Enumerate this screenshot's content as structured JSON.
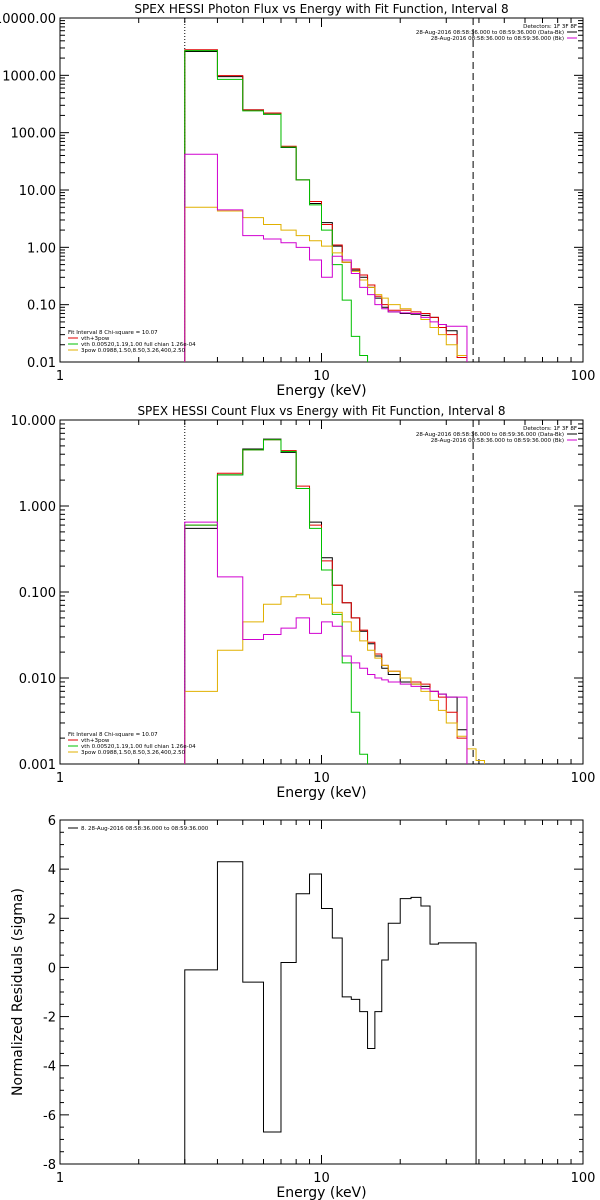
{
  "chart_data": [
    {
      "type": "line",
      "title": "SPEX HESSI Photon Flux vs Energy with Fit Function, Interval 8",
      "xlabel": "Energy (keV)",
      "ylabel": "",
      "xscale": "log",
      "yscale": "log",
      "xlim": [
        1,
        100
      ],
      "ylim": [
        0.01,
        10000
      ],
      "xticks": [
        "1",
        "10",
        "100"
      ],
      "yticks": [
        "0.01",
        "0.10",
        "1.00",
        "10.00",
        "100.00",
        "1000.00",
        "10000.00"
      ],
      "ytick_values": [
        0.01,
        0.1,
        1,
        10,
        100,
        1000,
        10000
      ],
      "fit_range_lines": [
        3,
        38
      ],
      "legend_top": {
        "position": "top-right",
        "header": "Detectors: 1F 3F 8F",
        "entries": [
          {
            "label": "28-Aug-2016 08:58:36.000 to 08:59:36.000 (Data-Bk)",
            "color": "#000000"
          },
          {
            "label": "28-Aug-2016 08:58:36.000 to 08:59:36.000 (Bk)",
            "color": "#d000d0"
          }
        ]
      },
      "legend_bottom": {
        "position": "bottom-left",
        "header": "Fit Interval 8   Chi-square = 10.07",
        "entries": [
          {
            "label": "vth+3pow",
            "color": "#e00000"
          },
          {
            "label": "vth 0.00520,1.19,1.00  full chian 1.26e-04",
            "color": "#00c000"
          },
          {
            "label": "3pow 0.0988,1.50,8.50,3.26,400,2.50",
            "color": "#e0b000"
          }
        ]
      },
      "bin_edges": [
        3,
        4,
        5,
        6,
        7,
        8,
        9,
        10,
        11,
        12,
        13,
        14,
        15,
        16,
        17,
        18,
        20,
        22,
        24,
        26,
        28,
        30,
        33,
        36,
        39,
        42
      ],
      "series": [
        {
          "color": "#000000",
          "values": [
            2600,
            950,
            250,
            210,
            55,
            15,
            5.8,
            2.7,
            1.05,
            0.55,
            0.4,
            0.3,
            0.2,
            0.13,
            0.09,
            0.075,
            0.07,
            0.068,
            0.065,
            0.06,
            0.045,
            0.035,
            0.013
          ]
        },
        {
          "color": "#e00000",
          "values": [
            2800,
            990,
            250,
            220,
            58,
            15,
            6.3,
            2.5,
            1.1,
            0.55,
            0.42,
            0.33,
            0.22,
            0.14,
            0.1,
            0.08,
            0.08,
            0.075,
            0.07,
            0.06,
            0.04,
            0.03,
            0.012
          ]
        },
        {
          "color": "#00c000",
          "values": [
            2700,
            850,
            240,
            210,
            56,
            15,
            5.5,
            2.0,
            0.5,
            0.12,
            0.028,
            0.013
          ]
        },
        {
          "color": "#e0b000",
          "values": [
            5.0,
            4.3,
            3.3,
            2.5,
            2.0,
            1.6,
            1.3,
            1.05,
            0.8,
            0.55,
            0.38,
            0.27,
            0.2,
            0.15,
            0.13,
            0.1,
            0.085,
            0.07,
            0.055,
            0.04,
            0.03,
            0.02,
            0.013,
            0.009
          ]
        },
        {
          "color": "#d000d0",
          "values": [
            42,
            4.5,
            1.6,
            1.4,
            1.2,
            1.0,
            0.6,
            0.3,
            0.7,
            0.6,
            0.35,
            0.2,
            0.15,
            0.1,
            0.085,
            0.075,
            0.072,
            0.07,
            0.06,
            0.05,
            0.045,
            0.042,
            0.042
          ]
        }
      ]
    },
    {
      "type": "line",
      "title": "SPEX HESSI Count Flux vs Energy with Fit Function, Interval 8",
      "xlabel": "Energy (keV)",
      "ylabel": "",
      "xscale": "log",
      "yscale": "log",
      "xlim": [
        1,
        100
      ],
      "ylim": [
        0.001,
        10
      ],
      "xticks": [
        "1",
        "10",
        "100"
      ],
      "yticks": [
        "0.001",
        "0.010",
        "0.100",
        "1.000",
        "10.000"
      ],
      "ytick_values": [
        0.001,
        0.01,
        0.1,
        1,
        10
      ],
      "fit_range_lines": [
        3,
        38
      ],
      "legend_top": {
        "position": "top-right",
        "header": "Detectors: 1F 3F 8F",
        "entries": [
          {
            "label": "28-Aug-2016 08:58:36.000 to 08:59:36.000 (Data-Bk)",
            "color": "#000000"
          },
          {
            "label": "28-Aug-2016 08:58:36.000 to 08:59:36.000 (Bk)",
            "color": "#d000d0"
          }
        ]
      },
      "legend_bottom": {
        "position": "bottom-left",
        "header": "Fit Interval 8   Chi-square = 10.07",
        "entries": [
          {
            "label": "vth+3pow",
            "color": "#e00000"
          },
          {
            "label": "vth 0.00520,1.19,1.00  full chian 1.26e-04",
            "color": "#00c000"
          },
          {
            "label": "3pow 0.0988,1.50,8.50,3.26,400,2.50",
            "color": "#e0b000"
          }
        ]
      },
      "bin_edges": [
        3,
        4,
        5,
        6,
        7,
        8,
        9,
        10,
        11,
        12,
        13,
        14,
        15,
        16,
        17,
        18,
        20,
        22,
        24,
        26,
        28,
        30,
        33,
        36,
        39,
        42,
        45
      ],
      "series": [
        {
          "color": "#000000",
          "values": [
            0.55,
            2.3,
            4.6,
            6.0,
            4.2,
            1.6,
            0.65,
            0.25,
            0.12,
            0.075,
            0.05,
            0.035,
            0.025,
            0.018,
            0.013,
            0.011,
            0.009,
            0.0085,
            0.008,
            0.007,
            0.0065,
            0.006,
            0.0025
          ]
        },
        {
          "color": "#e00000",
          "values": [
            0.6,
            2.4,
            4.5,
            5.9,
            4.4,
            1.7,
            0.6,
            0.23,
            0.12,
            0.075,
            0.05,
            0.036,
            0.026,
            0.019,
            0.014,
            0.012,
            0.01,
            0.009,
            0.0085,
            0.007,
            0.006,
            0.004,
            0.002
          ]
        },
        {
          "color": "#00c000",
          "values": [
            0.6,
            2.3,
            4.5,
            5.9,
            4.3,
            1.6,
            0.55,
            0.18,
            0.055,
            0.015,
            0.004,
            0.0013
          ]
        },
        {
          "color": "#e0b000",
          "values": [
            0.007,
            0.021,
            0.045,
            0.072,
            0.088,
            0.093,
            0.085,
            0.072,
            0.058,
            0.045,
            0.035,
            0.027,
            0.021,
            0.017,
            0.014,
            0.012,
            0.01,
            0.0085,
            0.007,
            0.0055,
            0.0042,
            0.003,
            0.0021,
            0.0015,
            0.0011
          ]
        },
        {
          "color": "#d000d0",
          "values": [
            0.65,
            0.15,
            0.028,
            0.032,
            0.038,
            0.05,
            0.033,
            0.045,
            0.04,
            0.018,
            0.015,
            0.013,
            0.011,
            0.01,
            0.0095,
            0.009,
            0.0085,
            0.008,
            0.0075,
            0.007,
            0.0065,
            0.006,
            0.006
          ]
        }
      ]
    },
    {
      "type": "line",
      "title": "",
      "xlabel": "Energy (keV)",
      "ylabel": "Normalized Residuals (sigma)",
      "xscale": "log",
      "yscale": "linear",
      "xlim": [
        1,
        100
      ],
      "ylim": [
        -8,
        6
      ],
      "xticks": [
        "1",
        "10",
        "100"
      ],
      "yticks": [
        "-8",
        "-6",
        "-4",
        "-2",
        "0",
        "2",
        "4",
        "6"
      ],
      "ytick_values": [
        -8,
        -6,
        -4,
        -2,
        0,
        2,
        4,
        6
      ],
      "legend_top": {
        "position": "top-left",
        "header": "",
        "entries": [
          {
            "label": "8. 28-Aug-2016 08:58:36.000 to 08:59:36.000",
            "color": "#000000"
          }
        ]
      },
      "bin_edges": [
        3,
        4,
        5,
        6,
        7,
        8,
        9,
        10,
        11,
        12,
        13,
        14,
        15,
        16,
        17,
        18,
        20,
        22,
        24,
        26,
        28,
        30,
        33,
        36,
        39
      ],
      "series": [
        {
          "color": "#000000",
          "values": [
            -0.1,
            4.3,
            -0.6,
            -6.7,
            0.2,
            3.0,
            3.8,
            2.4,
            1.2,
            -1.2,
            -1.3,
            -1.8,
            -3.3,
            -1.8,
            0.3,
            1.8,
            2.8,
            2.85,
            2.5,
            0.95,
            1.0,
            1.0,
            1.0,
            1.0
          ]
        }
      ]
    }
  ]
}
